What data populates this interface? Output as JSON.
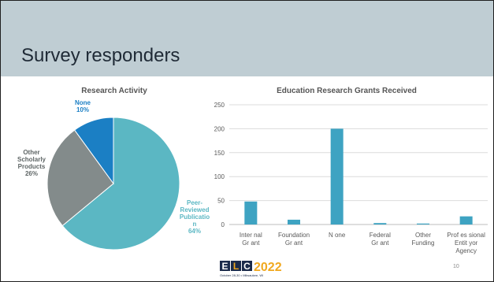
{
  "slide": {
    "title": "Survey responders",
    "page_number": "10",
    "logo": {
      "text": "ELC2022",
      "e": "E",
      "l": "L",
      "c": "C",
      "year": "2022",
      "sub": "October 28-30 • Milwaukee, WI"
    }
  },
  "colors": {
    "band": "#bfcdd3",
    "pie_peer": "#5bb7c3",
    "pie_other": "#838b8b",
    "pie_none": "#1b7fc4",
    "bar": "#3ea3c2",
    "logo_dark": "#1b2b4b",
    "logo_gold": "#f0a81e"
  },
  "chart_data": [
    {
      "type": "pie",
      "title": "Research Activity",
      "slices": [
        {
          "name": "Peer-Reviewed Publication",
          "label_lines": [
            "Peer-",
            "Reviewed",
            "Publicatio",
            "n"
          ],
          "value": 64,
          "pct_label": "64%",
          "color": "#5bb7c3"
        },
        {
          "name": "Other Scholarly Products",
          "label_lines": [
            "Other",
            "Scholarly",
            "Products"
          ],
          "value": 26,
          "pct_label": "26%",
          "color": "#838b8b"
        },
        {
          "name": "None",
          "label_lines": [
            "None"
          ],
          "value": 10,
          "pct_label": "10%",
          "color": "#1b7fc4"
        }
      ]
    },
    {
      "type": "bar",
      "title": "Education Research Grants Received",
      "categories": [
        {
          "name": "Internal Grant",
          "label_lines": [
            "Inter nal",
            "Gr ant"
          ]
        },
        {
          "name": "Foundation Grant",
          "label_lines": [
            "Foundation",
            "Gr ant"
          ]
        },
        {
          "name": "None",
          "label_lines": [
            "N one"
          ]
        },
        {
          "name": "Federal Grant",
          "label_lines": [
            "Federal",
            "Gr ant"
          ]
        },
        {
          "name": "Other Funding",
          "label_lines": [
            "Other",
            "Funding"
          ]
        },
        {
          "name": "Professional Entity or Agency",
          "label_lines": [
            "Prof es sional",
            "Entit yor",
            "Agency"
          ]
        }
      ],
      "values": [
        48,
        10,
        200,
        3,
        2,
        17
      ],
      "ylim": [
        0,
        250
      ],
      "yticks": [
        0,
        50,
        100,
        150,
        200,
        250
      ],
      "grid": true,
      "color": "#3ea3c2"
    }
  ]
}
